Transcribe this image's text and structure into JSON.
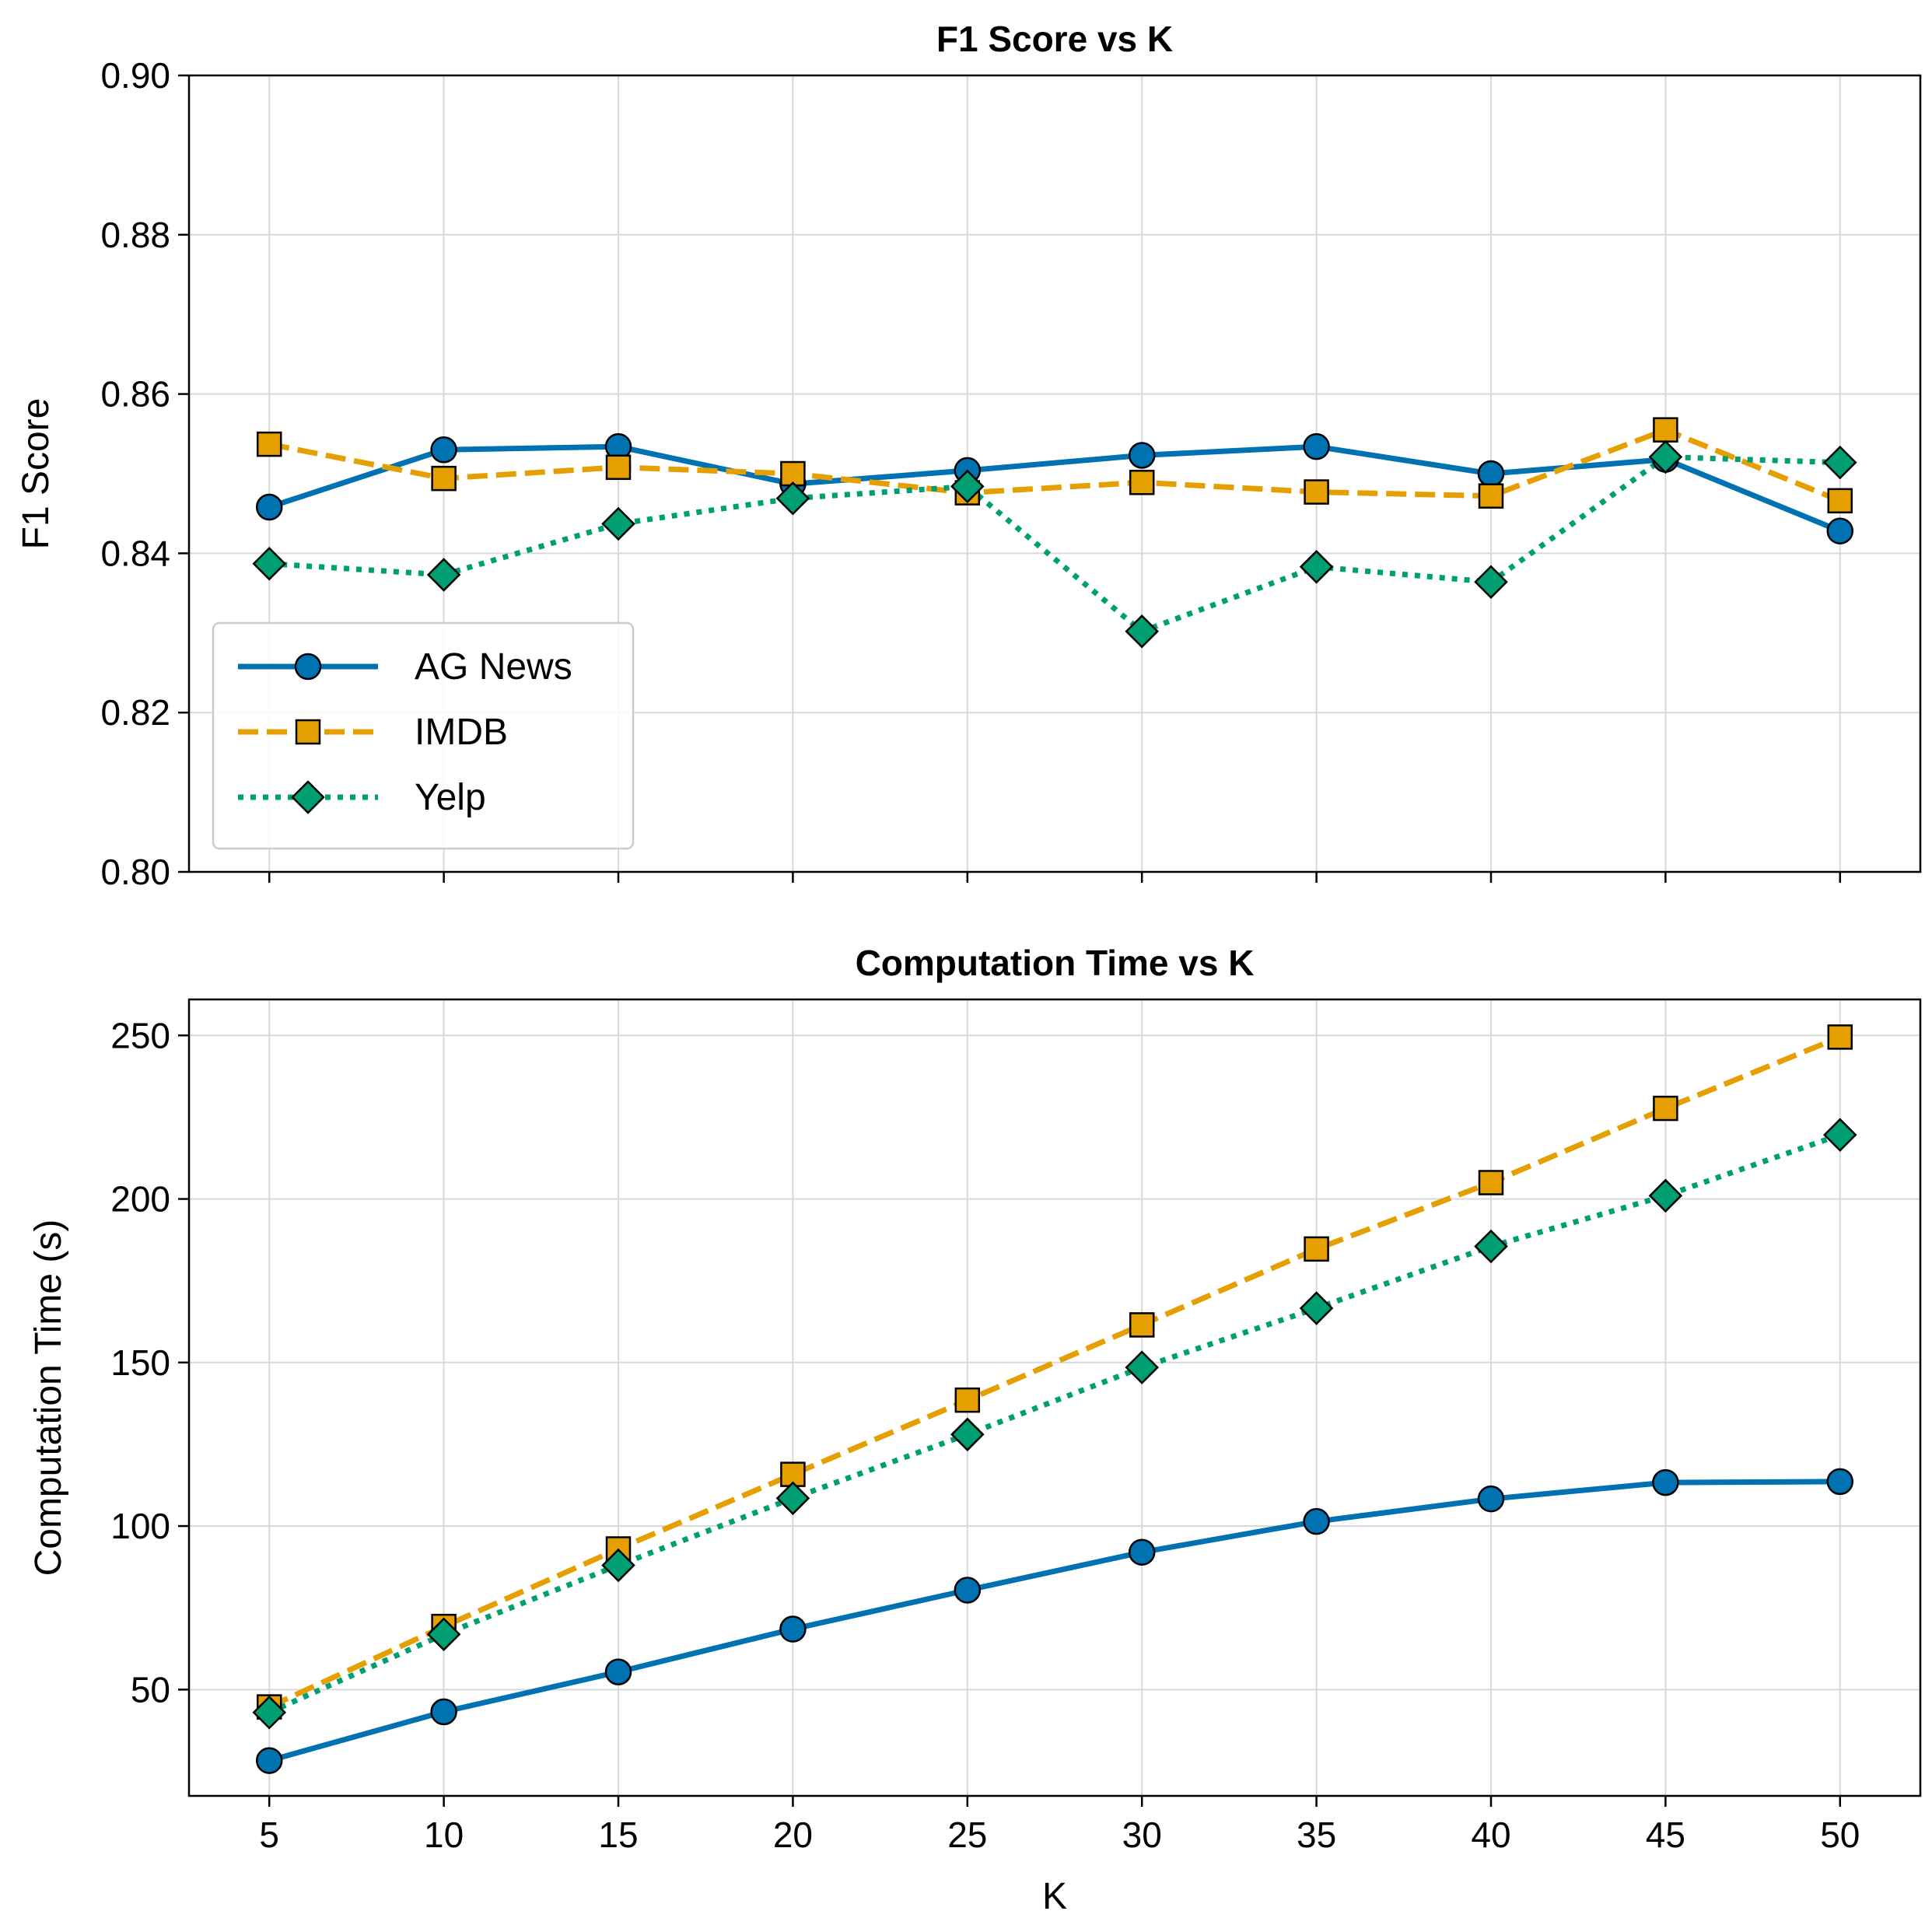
{
  "colors": {
    "AG News": "#0072B2",
    "IMDB": "#E69F00",
    "Yelp": "#009E73"
  },
  "chart_data": [
    {
      "type": "line",
      "title": "F1 Score vs K",
      "xlabel": "",
      "ylabel": "F1 Score",
      "x": [
        5,
        10,
        15,
        20,
        25,
        30,
        35,
        40,
        45,
        50
      ],
      "xlim": [
        2.7,
        52.3
      ],
      "ylim": [
        0.8,
        0.9
      ],
      "yticks": [
        0.8,
        0.82,
        0.84,
        0.86,
        0.88,
        0.9
      ],
      "ytick_labels": [
        "0.80",
        "0.82",
        "0.84",
        "0.86",
        "0.88",
        "0.90"
      ],
      "grid": true,
      "legend_position": "lower-left",
      "series": [
        {
          "name": "AG News",
          "style": "solid",
          "marker": "circle",
          "values": [
            0.8458,
            0.853,
            0.8534,
            0.8487,
            0.8504,
            0.8523,
            0.8534,
            0.85,
            0.8518,
            0.8428
          ]
        },
        {
          "name": "IMDB",
          "style": "dashed",
          "marker": "square",
          "values": [
            0.8537,
            0.8494,
            0.8508,
            0.85,
            0.8476,
            0.8489,
            0.8477,
            0.8472,
            0.8555,
            0.8466
          ]
        },
        {
          "name": "Yelp",
          "style": "dotted",
          "marker": "diamond",
          "values": [
            0.8387,
            0.8373,
            0.8437,
            0.8469,
            0.8484,
            0.8302,
            0.8383,
            0.8364,
            0.8521,
            0.8514
          ]
        }
      ]
    },
    {
      "type": "line",
      "title": "Computation Time vs K",
      "xlabel": "K",
      "ylabel": "Computation Time (s)",
      "x": [
        5,
        10,
        15,
        20,
        25,
        30,
        35,
        40,
        45,
        50
      ],
      "xtick_labels": [
        "5",
        "10",
        "15",
        "20",
        "25",
        "30",
        "35",
        "40",
        "45",
        "50"
      ],
      "xlim": [
        2.7,
        52.3
      ],
      "ylim": [
        17.5,
        261
      ],
      "yticks": [
        50,
        100,
        150,
        200,
        250
      ],
      "ytick_labels": [
        "50",
        "100",
        "150",
        "200",
        "250"
      ],
      "grid": true,
      "series": [
        {
          "name": "AG News",
          "style": "solid",
          "marker": "circle",
          "values": [
            28.3,
            43.2,
            55.4,
            68.5,
            80.4,
            92.0,
            101.4,
            108.3,
            113.3,
            113.6
          ]
        },
        {
          "name": "IMDB",
          "style": "dashed",
          "marker": "square",
          "values": [
            44.7,
            69.3,
            93.0,
            115.8,
            138.5,
            161.5,
            184.7,
            205.0,
            227.7,
            249.5
          ]
        },
        {
          "name": "Yelp",
          "style": "dotted",
          "marker": "diamond",
          "values": [
            43.0,
            66.9,
            88.0,
            108.5,
            128.0,
            148.5,
            166.6,
            185.5,
            201.0,
            219.6
          ]
        }
      ]
    }
  ]
}
